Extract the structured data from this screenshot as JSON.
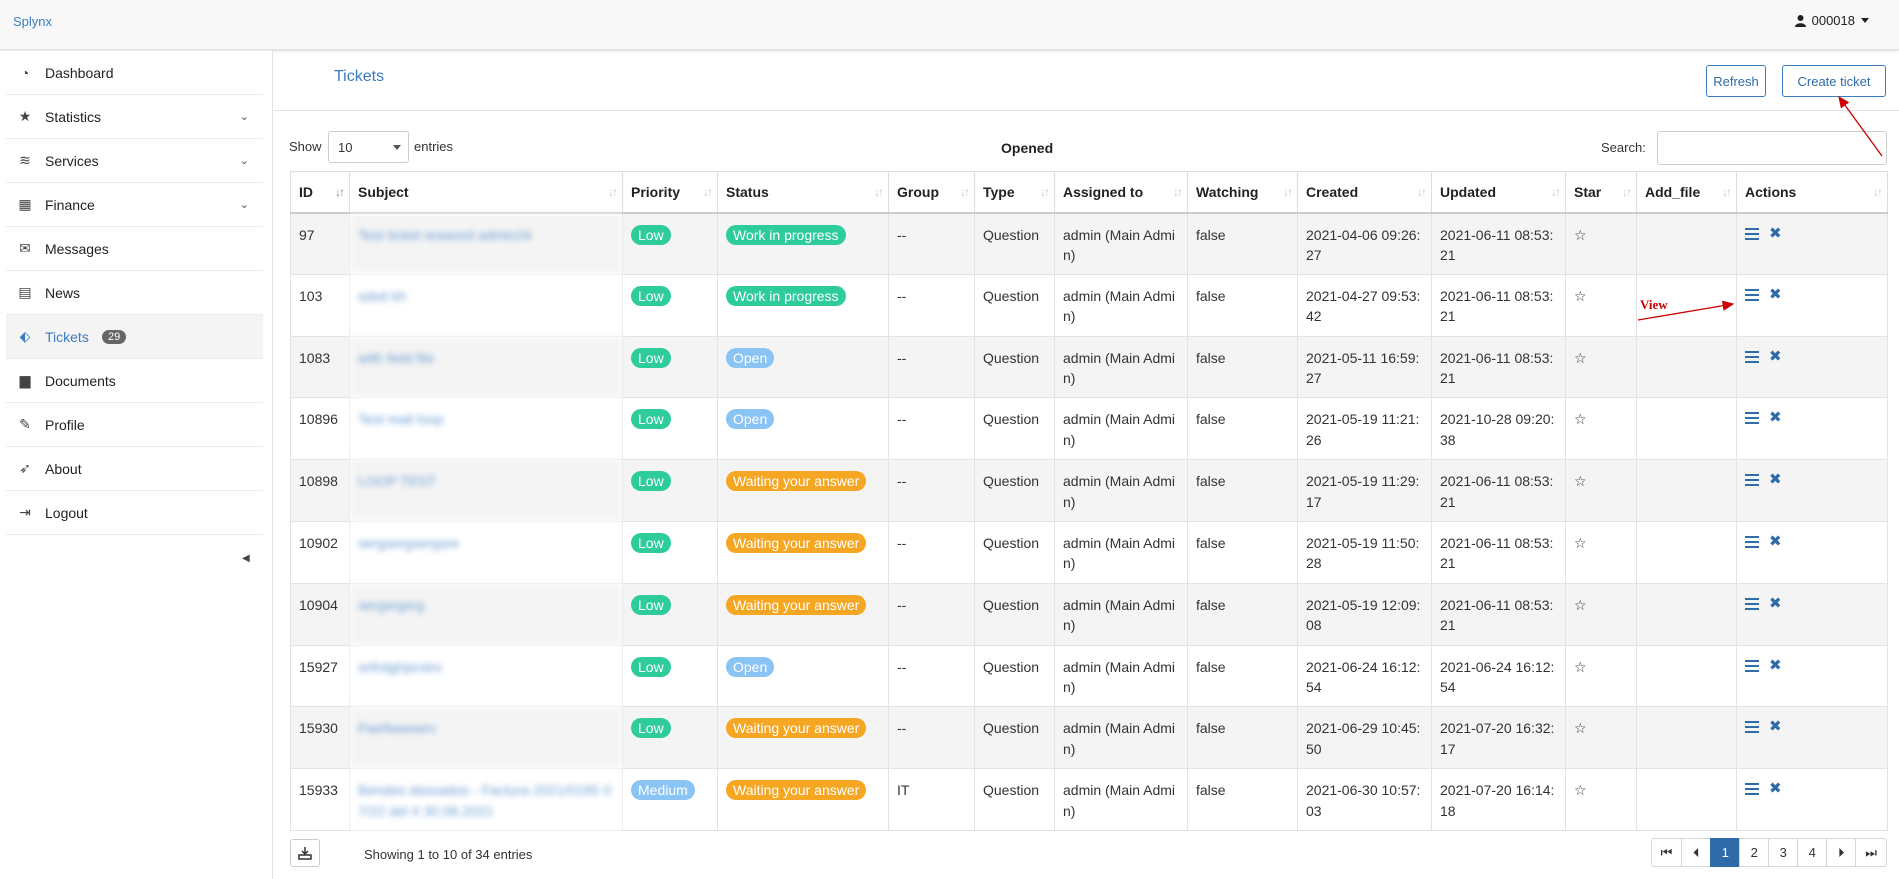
{
  "app": {
    "brand": "Splynx",
    "user": "000018"
  },
  "sidebar": {
    "items": [
      {
        "label": "Dashboard",
        "icon": "dashboard-icon",
        "chevron": false
      },
      {
        "label": "Statistics",
        "icon": "star-icon",
        "chevron": true
      },
      {
        "label": "Services",
        "icon": "wifi-icon",
        "chevron": true
      },
      {
        "label": "Finance",
        "icon": "calculator-icon",
        "chevron": true
      },
      {
        "label": "Messages",
        "icon": "envelope-icon",
        "chevron": false
      },
      {
        "label": "News",
        "icon": "newspaper-icon",
        "chevron": false
      },
      {
        "label": "Tickets",
        "icon": "ticket-icon",
        "chevron": false,
        "badge": "29",
        "active": true
      },
      {
        "label": "Documents",
        "icon": "document-icon",
        "chevron": false
      },
      {
        "label": "Profile",
        "icon": "pencil-icon",
        "chevron": false
      },
      {
        "label": "About",
        "icon": "rocket-icon",
        "chevron": false
      },
      {
        "label": "Logout",
        "icon": "logout-icon",
        "chevron": false
      }
    ]
  },
  "header": {
    "title": "Tickets",
    "refresh_label": "Refresh",
    "create_label": "Create ticket"
  },
  "controls": {
    "show_label": "Show",
    "entries_value": "10",
    "entries_label": "entries",
    "table_title": "Opened",
    "search_label": "Search:"
  },
  "table": {
    "columns": [
      "ID",
      "Subject",
      "Priority",
      "Status",
      "Group",
      "Type",
      "Assigned to",
      "Watching",
      "Created",
      "Updated",
      "Star",
      "Add_file",
      "Actions"
    ],
    "rows": [
      {
        "id": "97",
        "subject": "Test ticket resword admin24",
        "priority": "Low",
        "status": "Work in progress",
        "group": "--",
        "type": "Question",
        "assigned": "admin (Main Admin)",
        "watching": "false",
        "created": "2021-04-06 09:26:27",
        "updated": "2021-06-11 08:53:21"
      },
      {
        "id": "103",
        "subject": "sdsd kh",
        "priority": "Low",
        "status": "Work in progress",
        "group": "--",
        "type": "Question",
        "assigned": "admin (Main Admin)",
        "watching": "false",
        "created": "2021-04-27 09:53:42",
        "updated": "2021-06-11 08:53:21"
      },
      {
        "id": "1083",
        "subject": "with field file",
        "priority": "Low",
        "status": "Open",
        "group": "--",
        "type": "Question",
        "assigned": "admin (Main Admin)",
        "watching": "false",
        "created": "2021-05-11 16:59:27",
        "updated": "2021-06-11 08:53:21"
      },
      {
        "id": "10896",
        "subject": "Test mail loop",
        "priority": "Low",
        "status": "Open",
        "group": "--",
        "type": "Question",
        "assigned": "admin (Main Admin)",
        "watching": "false",
        "created": "2021-05-19 11:21:26",
        "updated": "2021-10-28 09:20:38"
      },
      {
        "id": "10898",
        "subject": "LOOP TEST",
        "priority": "Low",
        "status": "Waiting your answer",
        "group": "--",
        "type": "Question",
        "assigned": "admin (Main Admin)",
        "watching": "false",
        "created": "2021-05-19 11:29:17",
        "updated": "2021-06-11 08:53:21"
      },
      {
        "id": "10902",
        "subject": "sergsergsergsre",
        "priority": "Low",
        "status": "Waiting your answer",
        "group": "--",
        "type": "Question",
        "assigned": "admin (Main Admin)",
        "watching": "false",
        "created": "2021-05-19 11:50:28",
        "updated": "2021-06-11 08:53:21"
      },
      {
        "id": "10904",
        "subject": "sergsrgsrg",
        "priority": "Low",
        "status": "Waiting your answer",
        "group": "--",
        "type": "Question",
        "assigned": "admin (Main Admin)",
        "watching": "false",
        "created": "2021-05-19 12:09:08",
        "updated": "2021-06-11 08:53:21"
      },
      {
        "id": "15927",
        "subject": "srthdghjsrstrs",
        "priority": "Low",
        "status": "Open",
        "group": "--",
        "type": "Question",
        "assigned": "admin (Main Admin)",
        "watching": "false",
        "created": "2021-06-24 16:12:54",
        "updated": "2021-06-24 16:12:54"
      },
      {
        "id": "15930",
        "subject": "Fwefweewrv",
        "priority": "Low",
        "status": "Waiting your answer",
        "group": "--",
        "type": "Question",
        "assigned": "admin (Main Admin)",
        "watching": "false",
        "created": "2021-06-29 10:45:50",
        "updated": "2021-07-20 16:32:17"
      },
      {
        "id": "15933",
        "subject": "Bendes dassados - Factura 2021/0185 07/22 del # 30.06.2021",
        "priority": "Medium",
        "status": "Waiting your answer",
        "group": "IT",
        "type": "Question",
        "assigned": "admin (Main Admin)",
        "watching": "false",
        "created": "2021-06-30 10:57:03",
        "updated": "2021-07-20 16:14:18"
      }
    ]
  },
  "footer": {
    "showing": "Showing 1 to 10 of 34 entries",
    "pages": [
      "1",
      "2",
      "3",
      "4"
    ],
    "active_page": "1"
  },
  "annotation": {
    "view_label": "View"
  },
  "colors": {
    "accent": "#3a7cc2",
    "priority": {
      "Low": "#2ecc9a",
      "Medium": "#89c4f4"
    },
    "status": {
      "Work in progress": "#2ecc9a",
      "Open": "#89c4f4",
      "Waiting your answer": "#f5a623"
    },
    "annotation": "#cc0000"
  }
}
